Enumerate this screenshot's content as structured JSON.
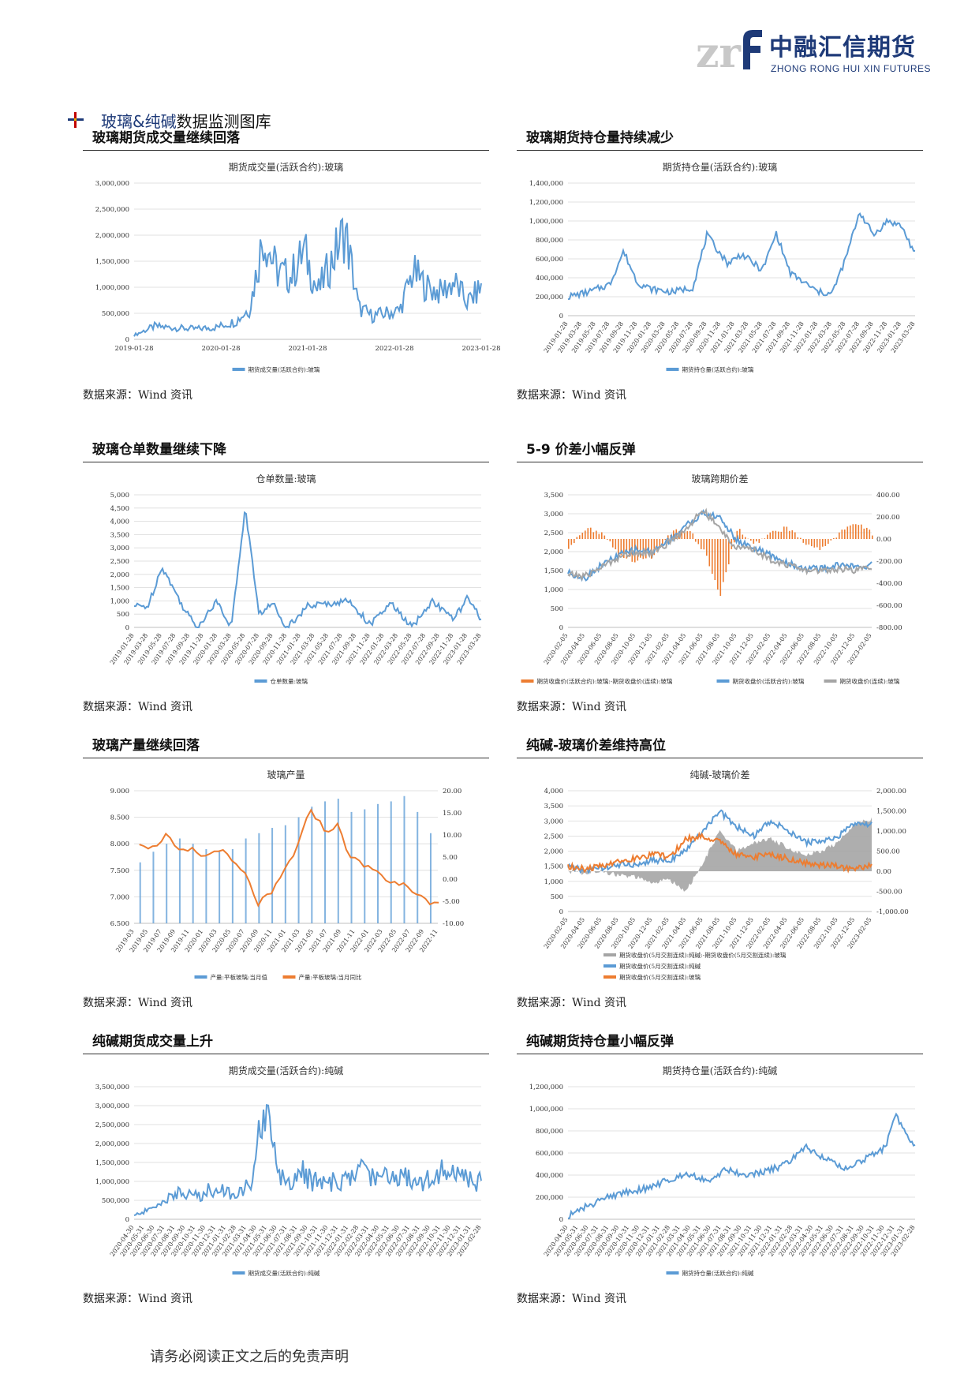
{
  "header": {
    "logo_mark": "zrf",
    "logo_cn": "中融汇信期货",
    "logo_en": "ZHONG RONG HUI XIN FUTURES"
  },
  "section": {
    "title_a": "玻璃&纯碱",
    "title_b": "数据监测图库"
  },
  "panels": [
    {
      "title": "玻璃期货成交量继续回落",
      "source": "数据来源：Wind 资讯"
    },
    {
      "title": "玻璃期货持仓量持续减少",
      "source": "数据来源：Wind 资讯"
    },
    {
      "title": "玻璃仓单数量继续下降",
      "source": "数据来源：Wind 资讯"
    },
    {
      "title": "5-9 价差小幅反弹",
      "source": "数据来源：Wind 资讯"
    },
    {
      "title": "玻璃产量继续回落",
      "source": "数据来源：Wind 资讯"
    },
    {
      "title": "纯碱-玻璃价差维持高位",
      "source": "数据来源：Wind 资讯"
    },
    {
      "title": "纯碱期货成交量上升",
      "source": "数据来源：Wind 资讯"
    },
    {
      "title": "纯碱期货持仓量小幅反弹",
      "source": "数据来源：Wind 资讯"
    }
  ],
  "footer": "请务必阅读正文之后的免责声明",
  "colors": {
    "blue": "#5b9bd5",
    "orange": "#ed7d31",
    "gray": "#a5a5a5",
    "brand": "#1e3a78"
  },
  "chart_data": [
    {
      "type": "line",
      "title": "期货成交量(活跃合约):玻璃",
      "yticks": [
        "0",
        "500,000",
        "1,000,000",
        "1,500,000",
        "2,000,000",
        "2,500,000",
        "3,000,000"
      ],
      "ylim": [
        0,
        3000000
      ],
      "xticks": [
        "2019-01-28",
        "2020-01-28",
        "2021-01-28",
        "2022-01-28",
        "2023-01-28"
      ],
      "x": [
        "2019-01",
        "2019-04",
        "2019-07",
        "2019-10",
        "2020-01",
        "2020-04",
        "2020-06",
        "2020-08",
        "2020-10",
        "2020-12",
        "2021-02",
        "2021-04",
        "2021-06",
        "2021-08",
        "2021-10",
        "2021-12",
        "2022-02",
        "2022-04",
        "2022-06",
        "2022-08",
        "2022-10",
        "2022-12",
        "2023-02",
        "2023-04"
      ],
      "series": [
        {
          "name": "期货成交量(活跃合约):玻璃",
          "color": "#5b9bd5",
          "values": [
            80000,
            250000,
            220000,
            200000,
            230000,
            350000,
            600000,
            2000000,
            1300000,
            1200000,
            1700000,
            900000,
            1500000,
            2100000,
            600000,
            450000,
            500000,
            550000,
            1300000,
            1000000,
            900000,
            1100000,
            700000,
            1000000
          ]
        }
      ],
      "legend": "bottom"
    },
    {
      "type": "line",
      "title": "期货持仓量(活跃合约):玻璃",
      "yticks": [
        "0",
        "200,000",
        "400,000",
        "600,000",
        "800,000",
        "1,000,000",
        "1,200,000",
        "1,400,000"
      ],
      "ylim": [
        0,
        1400000
      ],
      "xticks": [
        "2019-01-28",
        "2019-03-28",
        "2019-05-28",
        "2019-07-28",
        "2019-09-28",
        "2019-11-28",
        "2020-01-28",
        "2020-03-28",
        "2020-05-28",
        "2020-07-28",
        "2020-09-28",
        "2020-11-28",
        "2021-01-28",
        "2021-03-28",
        "2021-05-28",
        "2021-07-28",
        "2021-09-28",
        "2021-11-28",
        "2022-01-28",
        "2022-03-28",
        "2022-05-28",
        "2022-07-28",
        "2022-09-28",
        "2022-11-28",
        "2023-01-28",
        "2023-03-28"
      ],
      "x": [
        "2019-01",
        "2019-04",
        "2019-07",
        "2019-09",
        "2019-11",
        "2020-01",
        "2020-04",
        "2020-07",
        "2020-09",
        "2020-12",
        "2021-02",
        "2021-05",
        "2021-07",
        "2021-09",
        "2021-11",
        "2022-01",
        "2022-03",
        "2022-05",
        "2022-07",
        "2022-09",
        "2022-11",
        "2023-01",
        "2023-03"
      ],
      "series": [
        {
          "name": "期货持仓量(活跃合约):玻璃",
          "color": "#5b9bd5",
          "values": [
            200000,
            250000,
            330000,
            680000,
            350000,
            280000,
            250000,
            300000,
            850000,
            550000,
            650000,
            480000,
            870000,
            450000,
            350000,
            250000,
            230000,
            600000,
            1100000,
            850000,
            1000000,
            950000,
            650000
          ]
        }
      ],
      "legend": "bottom"
    },
    {
      "type": "line",
      "title": "仓单数量:玻璃",
      "yticks": [
        "0",
        "500",
        "1,000",
        "1,500",
        "2,000",
        "2,500",
        "3,000",
        "3,500",
        "4,000",
        "4,500",
        "5,000"
      ],
      "ylim": [
        0,
        5000
      ],
      "xticks": [
        "2019-01-28",
        "2019-03-28",
        "2019-05-28",
        "2019-07-28",
        "2019-09-28",
        "2019-11-28",
        "2020-01-28",
        "2020-03-28",
        "2020-05-28",
        "2020-07-28",
        "2020-09-28",
        "2020-11-28",
        "2021-01-28",
        "2021-03-28",
        "2021-05-28",
        "2021-07-28",
        "2021-09-28",
        "2021-11-28",
        "2022-01-28",
        "2022-03-28",
        "2022-05-28",
        "2022-07-28",
        "2022-09-28",
        "2022-11-28",
        "2023-01-28",
        "2023-03-28"
      ],
      "x": [
        "2019-01",
        "2019-03",
        "2019-05",
        "2019-06",
        "2019-08",
        "2019-10",
        "2020-01",
        "2020-03",
        "2020-05",
        "2020-07",
        "2020-09",
        "2020-11",
        "2021-02",
        "2021-05",
        "2021-08",
        "2021-11",
        "2022-02",
        "2022-05",
        "2022-08",
        "2022-11",
        "2023-01",
        "2023-03"
      ],
      "series": [
        {
          "name": "仓单数量:玻璃",
          "color": "#5b9bd5",
          "values": [
            800,
            800,
            2300,
            1800,
            800,
            0,
            1000,
            0,
            4500,
            500,
            900,
            0,
            800,
            900,
            1000,
            100,
            900,
            0,
            1000,
            300,
            1100,
            300
          ]
        }
      ],
      "legend": "bottom"
    },
    {
      "type": "line",
      "title": "玻璃跨期价差",
      "yticks_left": [
        "0",
        "500",
        "1,000",
        "1,500",
        "2,000",
        "2,500",
        "3,000",
        "3,500"
      ],
      "yticks_right": [
        "-800.00",
        "-600.00",
        "-400.00",
        "-200.00",
        "0.00",
        "200.00",
        "400.00"
      ],
      "ylim_left": [
        0,
        3500
      ],
      "ylim_right": [
        -800,
        400
      ],
      "xticks": [
        "2020-02-05",
        "2020-04-05",
        "2020-06-05",
        "2020-08-05",
        "2020-10-05",
        "2020-12-05",
        "2021-02-05",
        "2021-04-05",
        "2021-06-05",
        "2021-08-05",
        "2021-10-05",
        "2021-12-05",
        "2022-02-05",
        "2022-04-05",
        "2022-06-05",
        "2022-08-05",
        "2022-10-05",
        "2022-12-05",
        "2023-02-05"
      ],
      "x": [
        "2020-02",
        "2020-04",
        "2020-06",
        "2020-08",
        "2020-10",
        "2020-12",
        "2021-02",
        "2021-04",
        "2021-06",
        "2021-08",
        "2021-10",
        "2021-12",
        "2022-02",
        "2022-04",
        "2022-06",
        "2022-08",
        "2022-10",
        "2022-12",
        "2023-02"
      ],
      "series": [
        {
          "name": "期货收盘价(活跃合约):玻璃:-期货收盘价(连续):玻璃",
          "color": "#ed7d31",
          "axis": "right",
          "kind": "bar",
          "values": [
            -100,
            100,
            50,
            -150,
            -200,
            -150,
            50,
            100,
            -100,
            -500,
            100,
            -50,
            50,
            100,
            -50,
            -100,
            50,
            150,
            50
          ]
        },
        {
          "name": "期货收盘价(活跃合约):玻璃",
          "color": "#5b9bd5",
          "axis": "left",
          "values": [
            1450,
            1300,
            1650,
            1900,
            2050,
            2000,
            2300,
            2700,
            3000,
            2900,
            2300,
            2100,
            1900,
            1700,
            1550,
            1550,
            1650,
            1600,
            1650
          ]
        },
        {
          "name": "期货收盘价(连续):玻璃",
          "color": "#a5a5a5",
          "axis": "left",
          "values": [
            1400,
            1350,
            1600,
            1850,
            2000,
            1950,
            2250,
            2600,
            3100,
            2600,
            2100,
            2050,
            1800,
            1650,
            1500,
            1500,
            1550,
            1500,
            1600
          ]
        }
      ],
      "legend": "bottom"
    },
    {
      "type": "bar",
      "title": "玻璃产量",
      "yticks_left": [
        "6.500",
        "7.000",
        "7.500",
        "8.000",
        "8.500",
        "9.000"
      ],
      "yticks_right": [
        "-10.00",
        "-5.00",
        "0.00",
        "5.00",
        "10.00",
        "15.00",
        "20.00"
      ],
      "ylim_left": [
        6.5,
        9.0
      ],
      "ylim_right": [
        -10,
        20
      ],
      "xticks": [
        "2019-03",
        "2019-05",
        "2019-07",
        "2019-09",
        "2019-11",
        "2020-01",
        "2020-03",
        "2020-05",
        "2020-07",
        "2020-09",
        "2020-11",
        "2021-01",
        "2021-03",
        "2021-05",
        "2021-07",
        "2021-09",
        "2021-11",
        "2022-01",
        "2022-03",
        "2022-05",
        "2022-07",
        "2022-09",
        "2022-11"
      ],
      "series": [
        {
          "name": "产量:平板玻璃:当月值",
          "color": "#5b9bd5",
          "axis": "left",
          "kind": "bar",
          "values": [
            7.65,
            7.85,
            8.0,
            8.1,
            8.0,
            7.9,
            7.85,
            7.9,
            8.1,
            8.2,
            8.3,
            8.35,
            8.5,
            8.7,
            8.8,
            8.85,
            8.6,
            8.65,
            8.75,
            8.8,
            8.9,
            8.6,
            8.2
          ]
        },
        {
          "name": "产量:平板玻璃:当月同比",
          "color": "#ed7d31",
          "axis": "right",
          "kind": "line",
          "values": [
            8.5,
            7.0,
            10.0,
            6.0,
            6.5,
            5.0,
            7.0,
            4.0,
            1.0,
            -5.5,
            -3.5,
            2.0,
            7.5,
            16.0,
            11.0,
            12.0,
            5.0,
            3.0,
            2.0,
            -1.0,
            -0.5,
            -3.0,
            -6.0
          ]
        }
      ],
      "legend": "bottom"
    },
    {
      "type": "area",
      "title": "纯碱-玻璃价差",
      "yticks_left": [
        "0",
        "500",
        "1,000",
        "1,500",
        "2,000",
        "2,500",
        "3,000",
        "3,500",
        "4,000"
      ],
      "yticks_right": [
        "-1,000.00",
        "-500.00",
        "0.00",
        "500.00",
        "1,000.00",
        "1,500.00",
        "2,000.00"
      ],
      "ylim_left": [
        0,
        4000
      ],
      "ylim_right": [
        -1000,
        2000
      ],
      "xticks": [
        "2020-02-05",
        "2020-04-05",
        "2020-06-05",
        "2020-08-05",
        "2020-10-05",
        "2020-12-05",
        "2021-02-05",
        "2021-04-05",
        "2021-06-05",
        "2021-08-05",
        "2021-10-05",
        "2021-12-05",
        "2022-02-05",
        "2022-04-05",
        "2022-06-05",
        "2022-08-05",
        "2022-10-05",
        "2022-12-05",
        "2023-02-05"
      ],
      "x": [
        "2020-02",
        "2020-04",
        "2020-06",
        "2020-08",
        "2020-10",
        "2020-12",
        "2021-02",
        "2021-04",
        "2021-06",
        "2021-08",
        "2021-10",
        "2021-12",
        "2022-02",
        "2022-04",
        "2022-06",
        "2022-08",
        "2022-10",
        "2022-12",
        "2023-02"
      ],
      "series": [
        {
          "name": "期货收盘价(5月交割连续):纯碱:-期货收盘价(5月交割连续):玻璃",
          "color": "#a5a5a5",
          "axis": "right",
          "kind": "area",
          "values": [
            0,
            -50,
            0,
            -100,
            -150,
            -300,
            -200,
            -500,
            200,
            1000,
            500,
            700,
            800,
            600,
            400,
            500,
            700,
            1200,
            1300
          ]
        },
        {
          "name": "期货收盘价(5月交割连续):纯碱",
          "color": "#5b9bd5",
          "axis": "left",
          "values": [
            1500,
            1350,
            1450,
            1550,
            1550,
            1700,
            1700,
            2000,
            2700,
            3300,
            2800,
            2500,
            3000,
            2700,
            2300,
            2300,
            2500,
            2900,
            2900
          ]
        },
        {
          "name": "期货收盘价(5月交割连续):玻璃",
          "color": "#ed7d31",
          "axis": "left",
          "values": [
            1500,
            1400,
            1500,
            1700,
            1750,
            1900,
            1800,
            2400,
            2500,
            2300,
            1900,
            1800,
            1900,
            1750,
            1600,
            1550,
            1500,
            1400,
            1550
          ]
        }
      ],
      "legend": "bottom"
    },
    {
      "type": "line",
      "title": "期货成交量(活跃合约):纯碱",
      "yticks": [
        "0",
        "500,000",
        "1,000,000",
        "1,500,000",
        "2,000,000",
        "2,500,000",
        "3,000,000",
        "3,500,000"
      ],
      "ylim": [
        0,
        3500000
      ],
      "xticks": [
        "2020-04-30",
        "2020-05-31",
        "2020-06-30",
        "2020-07-31",
        "2020-08-31",
        "2020-09-30",
        "2020-10-31",
        "2020-11-30",
        "2020-12-31",
        "2021-01-31",
        "2021-02-28",
        "2021-03-31",
        "2021-04-30",
        "2021-05-31",
        "2021-06-30",
        "2021-07-31",
        "2021-08-31",
        "2021-09-30",
        "2021-10-31",
        "2021-11-30",
        "2021-12-31",
        "2022-01-31",
        "2022-02-28",
        "2022-03-31",
        "2022-04-30",
        "2022-05-31",
        "2022-06-30",
        "2022-07-31",
        "2022-08-31",
        "2022-09-30",
        "2022-10-31",
        "2022-11-30",
        "2022-12-31",
        "2023-01-31",
        "2023-02-28"
      ],
      "x": [
        "2020-04",
        "2020-06",
        "2020-08",
        "2020-10",
        "2020-12",
        "2021-02",
        "2021-04",
        "2021-05",
        "2021-07",
        "2021-09",
        "2021-11",
        "2022-01",
        "2022-03",
        "2022-05",
        "2022-07",
        "2022-09",
        "2022-11",
        "2023-01",
        "2023-03"
      ],
      "series": [
        {
          "name": "期货成交量(活跃合约):纯碱",
          "color": "#5b9bd5",
          "values": [
            100000,
            300000,
            700000,
            600000,
            800000,
            700000,
            900000,
            3100000,
            1000000,
            1200000,
            900000,
            1000000,
            1300000,
            1100000,
            1200000,
            1000000,
            1300000,
            1100000,
            1000000
          ]
        }
      ],
      "legend": "bottom"
    },
    {
      "type": "line",
      "title": "期货持仓量(活跃合约):纯碱",
      "yticks": [
        "0",
        "200,000",
        "400,000",
        "600,000",
        "800,000",
        "1,000,000",
        "1,200,000"
      ],
      "ylim": [
        0,
        1200000
      ],
      "xticks": [
        "2020-04-30",
        "2020-05-31",
        "2020-06-30",
        "2020-07-31",
        "2020-08-31",
        "2020-09-30",
        "2020-10-31",
        "2020-11-30",
        "2020-12-31",
        "2021-01-31",
        "2021-02-28",
        "2021-03-31",
        "2021-04-30",
        "2021-05-31",
        "2021-06-30",
        "2021-07-31",
        "2021-08-31",
        "2021-09-30",
        "2021-10-31",
        "2021-11-30",
        "2021-12-31",
        "2022-01-31",
        "2022-02-28",
        "2022-03-31",
        "2022-04-30",
        "2022-05-31",
        "2022-06-30",
        "2022-07-31",
        "2022-08-31",
        "2022-09-30",
        "2022-10-31",
        "2022-11-30",
        "2022-12-31",
        "2023-01-31",
        "2023-02-28"
      ],
      "x": [
        "2020-04",
        "2020-06",
        "2020-08",
        "2020-10",
        "2020-12",
        "2021-02",
        "2021-04",
        "2021-06",
        "2021-08",
        "2021-10",
        "2021-12",
        "2022-02",
        "2022-04",
        "2022-06",
        "2022-08",
        "2022-10",
        "2022-12",
        "2023-01",
        "2023-03"
      ],
      "series": [
        {
          "name": "期货持仓量(活跃合约):纯碱",
          "color": "#5b9bd5",
          "values": [
            30000,
            120000,
            200000,
            250000,
            280000,
            350000,
            420000,
            350000,
            450000,
            400000,
            430000,
            500000,
            650000,
            550000,
            450000,
            550000,
            650000,
            950000,
            650000
          ]
        }
      ],
      "legend": "bottom"
    }
  ]
}
